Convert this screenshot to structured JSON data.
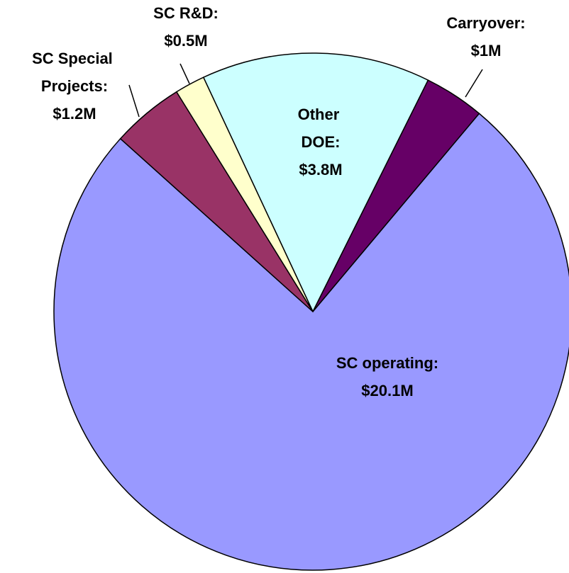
{
  "chart_data": {
    "type": "pie",
    "categories": [
      "Other DOE:",
      "Carryover:",
      "SC operating:",
      "SC Special Projects:",
      "SC R&D:"
    ],
    "values": [
      3.8,
      1,
      20.1,
      1.2,
      0.5
    ],
    "value_labels": [
      "$3.8M",
      "$1M",
      "$20.1M",
      "$1.2M",
      "$0.5M"
    ],
    "colors": [
      "#ccffff",
      "#660066",
      "#9999ff",
      "#993366",
      "#ffffcc"
    ]
  }
}
